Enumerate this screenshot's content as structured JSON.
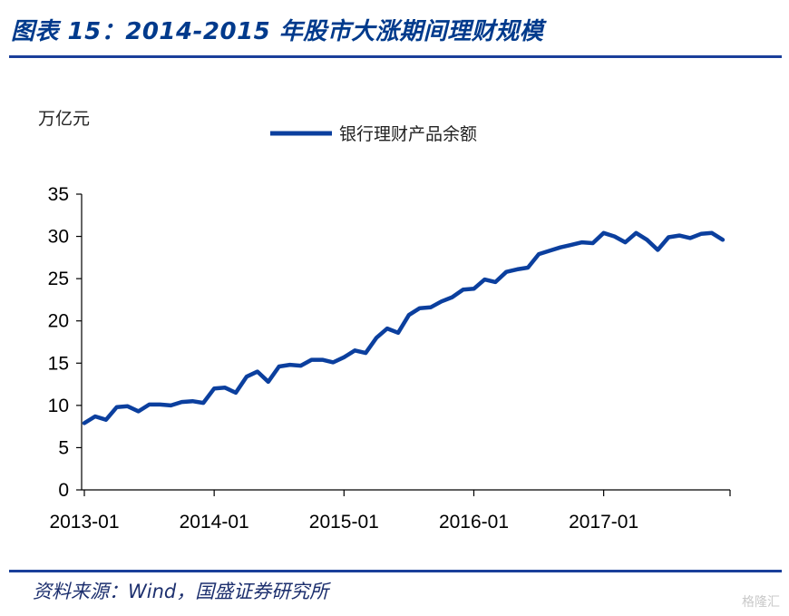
{
  "header": {
    "title": "图表 15：2014-2015 年股市大涨期间理财规模"
  },
  "footer": {
    "source": "资料来源：Wind，国盛证券研究所",
    "watermark": "格隆汇"
  },
  "colors": {
    "accent": "#0b3f9e",
    "rule": "#1a3f9a",
    "title": "#003a8c"
  },
  "chart_data": {
    "type": "line",
    "title": "",
    "unit_label": "万亿元",
    "xlabel": "",
    "ylabel": "",
    "ylim": [
      0,
      35
    ],
    "yticks": [
      0,
      5,
      10,
      15,
      20,
      25,
      30,
      35
    ],
    "x_tick_labels": [
      "2013-01",
      "2014-01",
      "2015-01",
      "2016-01",
      "2017-01"
    ],
    "legend": "top-center",
    "grid": false,
    "series": [
      {
        "name": "银行理财产品余额",
        "color": "#0b3f9e",
        "x": [
          "2013-01",
          "2013-02",
          "2013-03",
          "2013-04",
          "2013-05",
          "2013-06",
          "2013-07",
          "2013-08",
          "2013-09",
          "2013-10",
          "2013-11",
          "2013-12",
          "2014-01",
          "2014-02",
          "2014-03",
          "2014-04",
          "2014-05",
          "2014-06",
          "2014-07",
          "2014-08",
          "2014-09",
          "2014-10",
          "2014-11",
          "2014-12",
          "2015-01",
          "2015-02",
          "2015-03",
          "2015-04",
          "2015-05",
          "2015-06",
          "2015-07",
          "2015-08",
          "2015-09",
          "2015-10",
          "2015-11",
          "2015-12",
          "2016-01",
          "2016-02",
          "2016-03",
          "2016-04",
          "2016-05",
          "2016-06",
          "2016-07",
          "2016-08",
          "2016-09",
          "2016-10",
          "2016-11",
          "2016-12",
          "2017-01",
          "2017-02",
          "2017-03",
          "2017-04",
          "2017-05",
          "2017-06",
          "2017-07",
          "2017-08",
          "2017-09",
          "2017-10",
          "2017-11",
          "2017-12"
        ],
        "values": [
          7.9,
          8.7,
          8.3,
          9.8,
          9.9,
          9.3,
          10.1,
          10.1,
          10.0,
          10.4,
          10.5,
          10.3,
          12.0,
          12.1,
          11.5,
          13.4,
          14.0,
          12.8,
          14.6,
          14.8,
          14.7,
          15.4,
          15.4,
          15.1,
          15.7,
          16.5,
          16.2,
          18.0,
          19.1,
          18.6,
          20.7,
          21.5,
          21.6,
          22.3,
          22.8,
          23.7,
          23.8,
          24.9,
          24.6,
          25.8,
          26.1,
          26.3,
          27.9,
          28.3,
          28.7,
          29.0,
          29.3,
          29.2,
          30.4,
          30.0,
          29.3,
          30.4,
          29.6,
          28.4,
          29.9,
          30.1,
          29.8,
          30.3,
          30.4,
          29.6
        ]
      }
    ]
  }
}
